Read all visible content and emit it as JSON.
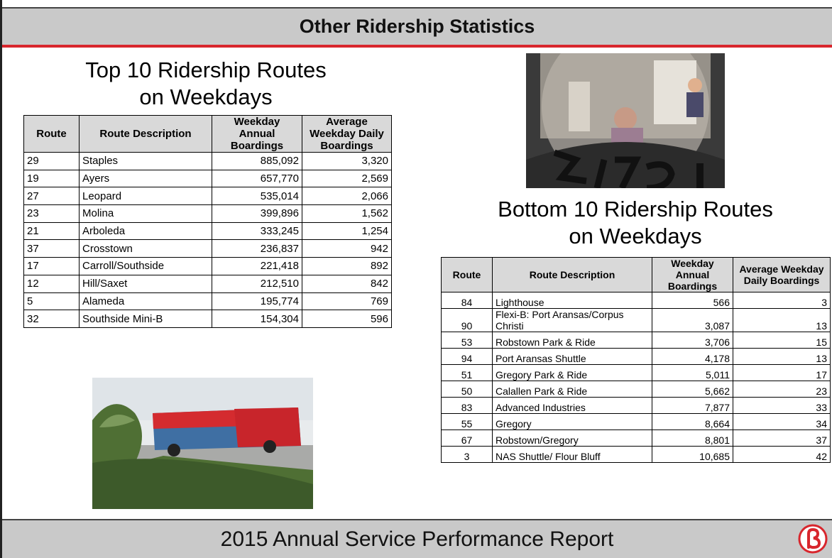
{
  "header": {
    "title": "Other Ridership Statistics"
  },
  "top": {
    "title_lines": [
      "Top 10 Ridership Routes",
      "on Weekdays"
    ],
    "table": {
      "headers": [
        "Route",
        "Route Description",
        "Weekday Annual Boardings",
        "Average Weekday Daily Boardings"
      ],
      "rows": [
        [
          "29",
          "Staples",
          "885,092",
          "3,320"
        ],
        [
          "19",
          "Ayers",
          "657,770",
          "2,569"
        ],
        [
          "27",
          "Leopard",
          "535,014",
          "2,066"
        ],
        [
          "23",
          "Molina",
          "399,896",
          "1,562"
        ],
        [
          "21",
          "Arboleda",
          "333,245",
          "1,254"
        ],
        [
          "37",
          "Crosstown",
          "236,837",
          "942"
        ],
        [
          "17",
          "Carroll/Southside",
          "221,418",
          "892"
        ],
        [
          "12",
          "Hill/Saxet",
          "212,510",
          "842"
        ],
        [
          "5",
          "Alameda",
          "195,774",
          "769"
        ],
        [
          "32",
          "Southside Mini-B",
          "154,304",
          "596"
        ]
      ]
    }
  },
  "bottom": {
    "title_lines": [
      "Bottom 10 Ridership Routes",
      "on Weekdays"
    ],
    "table": {
      "headers": [
        "Route",
        "Route Description",
        "Weekday Annual Boardings",
        "Average Weekday Daily Boardings"
      ],
      "rows": [
        [
          "84",
          "Lighthouse",
          "566",
          "3"
        ],
        [
          "90",
          "Flexi-B: Port Aransas/Corpus Christi",
          "3,087",
          "13"
        ],
        [
          "53",
          "Robstown Park & Ride",
          "3,706",
          "15"
        ],
        [
          "94",
          "Port Aransas Shuttle",
          "4,178",
          "13"
        ],
        [
          "51",
          "Gregory Park & Ride",
          "5,011",
          "17"
        ],
        [
          "50",
          "Calallen Park & Ride",
          "5,662",
          "23"
        ],
        [
          "83",
          "Advanced Industries",
          "7,877",
          "33"
        ],
        [
          "55",
          "Gregory",
          "8,664",
          "34"
        ],
        [
          "67",
          "Robstown/Gregory",
          "8,801",
          "37"
        ],
        [
          "3",
          "NAS Shuttle/ Flour Bluff",
          "10,685",
          "42"
        ]
      ]
    }
  },
  "footer": {
    "title": "2015 Annual Service Performance Report"
  }
}
